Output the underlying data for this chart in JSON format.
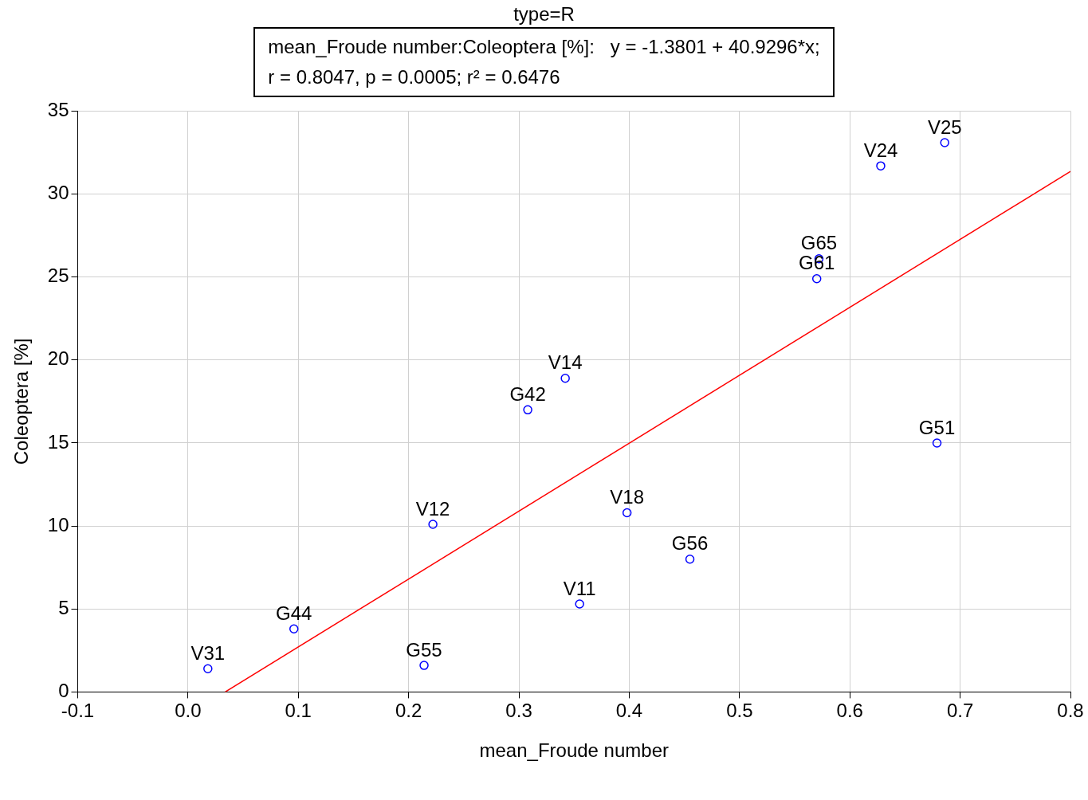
{
  "chart_data": {
    "type": "scatter",
    "title": "type=R",
    "xlabel": "mean_Froude number",
    "ylabel": "Coleoptera [%]",
    "annotations": [
      "mean_Froude number:Coleoptera [%]:   y = -1.3801 + 40.9296*x;\nr = 0.8047, p = 0.0005; r² = 0.6476",
      {
        "text": "V31",
        "x": 0.018,
        "y": 1.4
      },
      {
        "text": "G44",
        "x": 0.096,
        "y": 3.8
      },
      {
        "text": "G55",
        "x": 0.214,
        "y": 1.6
      },
      {
        "text": "V12",
        "x": 0.222,
        "y": 10.1
      },
      {
        "text": "G42",
        "x": 0.308,
        "y": 17.0
      },
      {
        "text": "V14",
        "x": 0.342,
        "y": 18.9
      },
      {
        "text": "V11",
        "x": 0.355,
        "y": 5.3
      },
      {
        "text": "V18",
        "x": 0.398,
        "y": 10.8
      },
      {
        "text": "G56",
        "x": 0.455,
        "y": 8.0
      },
      {
        "text": "G61",
        "x": 0.57,
        "y": 24.9
      },
      {
        "text": "G65",
        "x": 0.572,
        "y": 26.1
      },
      {
        "text": "G51",
        "x": 0.679,
        "y": 15.0
      },
      {
        "text": "V24",
        "x": 0.628,
        "y": 31.7
      },
      {
        "text": "V25",
        "x": 0.686,
        "y": 33.1
      }
    ],
    "series": [
      {
        "marker": "circle",
        "color": "#0000ff",
        "x": [
          0.018,
          0.096,
          0.214,
          0.222,
          0.308,
          0.342,
          0.355,
          0.398,
          0.455,
          0.57,
          0.572,
          0.679,
          0.628,
          0.686
        ],
        "values": [
          1.4,
          3.8,
          1.6,
          10.1,
          17.0,
          18.9,
          5.3,
          10.8,
          8.0,
          24.9,
          26.1,
          15.0,
          31.7,
          33.1
        ]
      },
      {
        "type": "line",
        "color": "#ff0000",
        "x": [
          0.0337,
          0.8
        ],
        "values": [
          0,
          31.36
        ]
      }
    ],
    "xlim": [
      -0.1,
      0.8
    ],
    "xticks": [
      {
        "value": -0.1,
        "label": "-0.1"
      },
      {
        "value": 0,
        "label": "0.0"
      },
      {
        "value": 0.1,
        "label": "0.1"
      },
      {
        "value": 0.2,
        "label": "0.2"
      },
      {
        "value": 0.3,
        "label": "0.3"
      },
      {
        "value": 0.4,
        "label": "0.4"
      },
      {
        "value": 0.5,
        "label": "0.5"
      },
      {
        "value": 0.6,
        "label": "0.6"
      },
      {
        "value": 0.7,
        "label": "0.7"
      },
      {
        "value": 0.8,
        "label": "0.8"
      }
    ],
    "ylim": [
      0,
      35
    ],
    "yticks": [
      0,
      5,
      10,
      15,
      20,
      25,
      30,
      35
    ],
    "grid": true,
    "legend": false
  }
}
